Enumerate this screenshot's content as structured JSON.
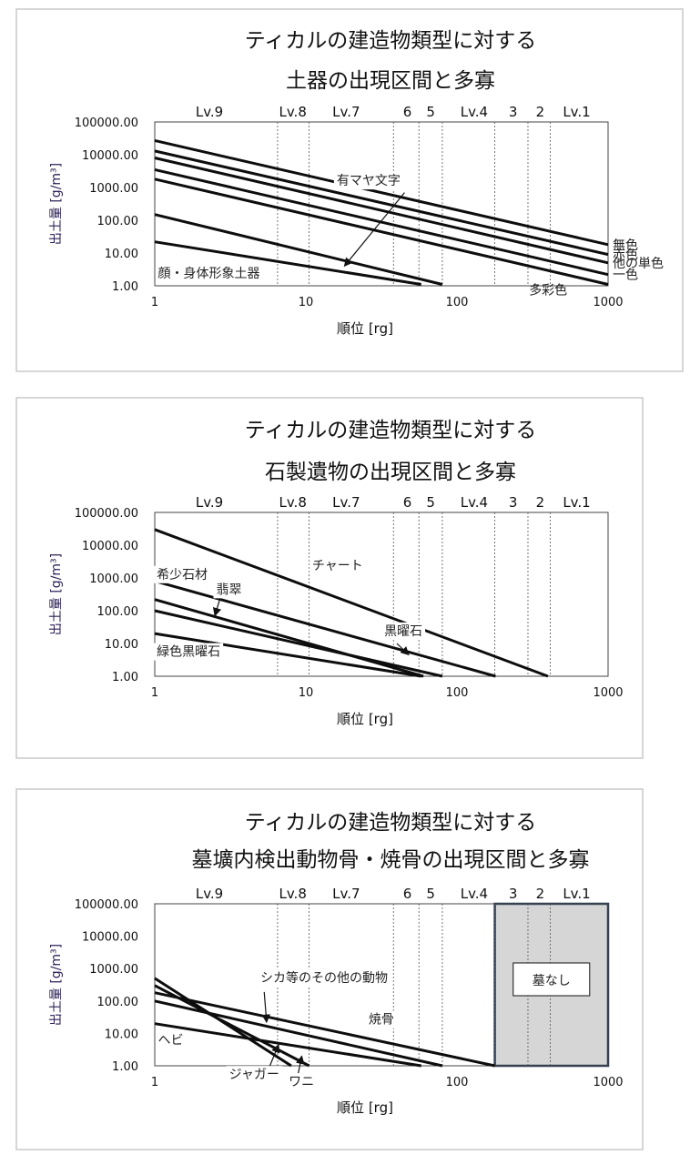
{
  "chart_data": [
    {
      "type": "line",
      "title_lines": [
        "ティカルの建造物類型に対する",
        "土器の出現区間と多寡"
      ],
      "xlabel": "順位 [rg]",
      "ylabel": "出土量 [g/m³]",
      "xscale": "log",
      "yscale": "log",
      "xlim": [
        1,
        1000
      ],
      "ylim": [
        1,
        100000
      ],
      "x_ticks": [
        "1",
        "10",
        "100",
        "1000"
      ],
      "y_ticks": [
        "1.00",
        "10.00",
        "100.00",
        "1000.00",
        "10000.00",
        "100000.00"
      ],
      "levels": [
        {
          "label": "Lv.9",
          "x": 2.3
        },
        {
          "label": "Lv.8",
          "x": 8.2
        },
        {
          "label": "Lv.7",
          "x": 18.5
        },
        {
          "label": "6",
          "x": 47
        },
        {
          "label": "5",
          "x": 67
        },
        {
          "label": "Lv.4",
          "x": 130
        },
        {
          "label": "3",
          "x": 235
        },
        {
          "label": "2",
          "x": 355
        },
        {
          "label": "Lv.1",
          "x": 620
        }
      ],
      "boundaries": [
        6.5,
        10.5,
        38,
        56,
        80,
        178,
        295,
        415
      ],
      "series": [
        {
          "name": "無色",
          "points": [
            [
              1,
              27000
            ],
            [
              1000,
              18
            ]
          ]
        },
        {
          "name": "赤色",
          "points": [
            [
              1,
              13000
            ],
            [
              1000,
              9
            ]
          ]
        },
        {
          "name": "他の単色",
          "points": [
            [
              1,
              8000
            ],
            [
              1000,
              5
            ]
          ]
        },
        {
          "name": "一色",
          "points": [
            [
              1,
              3500
            ],
            [
              1000,
              2.2
            ]
          ]
        },
        {
          "name": "多彩色",
          "points": [
            [
              1,
              1800
            ],
            [
              1000,
              1.1
            ]
          ]
        },
        {
          "name": "",
          "points": [
            [
              1,
              150
            ],
            [
              80,
              1.1
            ]
          ]
        },
        {
          "name": "",
          "points": [
            [
              1,
              22
            ],
            [
              58,
              1.1
            ]
          ]
        }
      ],
      "annotations": [
        {
          "text": "有マヤ文字",
          "x": 16,
          "y": 1200,
          "arrow_from": [
            45,
            700
          ],
          "arrow_to": [
            18,
            4
          ]
        },
        {
          "text": "顔・身体形象土器",
          "x": 1.05,
          "y": 1.8
        }
      ],
      "right_labels": [
        {
          "text": "無色",
          "y": 18
        },
        {
          "text": "赤色",
          "y": 9
        },
        {
          "text": "他の単色",
          "y": 5
        },
        {
          "text": "一色",
          "y": 2.2
        }
      ],
      "extra_labels": [
        {
          "text": "多彩色",
          "x": 300,
          "y": 0.75
        }
      ]
    },
    {
      "type": "line",
      "title_lines": [
        "ティカルの建造物類型に対する",
        "石製遺物の出現区間と多寡"
      ],
      "xlabel": "順位 [rg]",
      "ylabel": "出土量 [g/m³]",
      "xscale": "log",
      "yscale": "log",
      "xlim": [
        1,
        1000
      ],
      "ylim": [
        1,
        100000
      ],
      "x_ticks": [
        "1",
        "10",
        "100",
        "1000"
      ],
      "y_ticks": [
        "1.00",
        "10.00",
        "100.00",
        "1000.00",
        "10000.00",
        "100000.00"
      ],
      "levels": [
        {
          "label": "Lv.9",
          "x": 2.3
        },
        {
          "label": "Lv.8",
          "x": 8.2
        },
        {
          "label": "Lv.7",
          "x": 18.5
        },
        {
          "label": "6",
          "x": 47
        },
        {
          "label": "5",
          "x": 67
        },
        {
          "label": "Lv.4",
          "x": 130
        },
        {
          "label": "3",
          "x": 235
        },
        {
          "label": "2",
          "x": 355
        },
        {
          "label": "Lv.1",
          "x": 620
        }
      ],
      "boundaries": [
        6.5,
        10.5,
        38,
        56,
        80,
        178,
        295,
        415
      ],
      "series": [
        {
          "name": "チャート",
          "points": [
            [
              1,
              30000
            ],
            [
              400,
              1
            ]
          ]
        },
        {
          "name": "希少石材",
          "points": [
            [
              1,
              800
            ],
            [
              180,
              1
            ]
          ]
        },
        {
          "name": "翡翠",
          "points": [
            [
              1,
              220
            ],
            [
              60,
              1
            ]
          ]
        },
        {
          "name": "黒曜石",
          "points": [
            [
              1,
              100
            ],
            [
              80,
              1
            ]
          ]
        },
        {
          "name": "緑色黒曜石",
          "points": [
            [
              1,
              20
            ],
            [
              58,
              1
            ]
          ]
        }
      ],
      "annotations": [
        {
          "text": "チャート",
          "x": 11,
          "y": 1800
        },
        {
          "text": "希少石材",
          "x": 1.03,
          "y": 950
        },
        {
          "text": "翡翠",
          "x": 2.55,
          "y": 330,
          "arrow_from": [
            2.7,
            230
          ],
          "arrow_to": [
            2.5,
            70
          ]
        },
        {
          "text": "黒曜石",
          "x": 33,
          "y": 18,
          "arrow_from": [
            40,
            10
          ],
          "arrow_to": [
            48,
            4.5
          ]
        },
        {
          "text": "緑色黒曜石",
          "x": 1.03,
          "y": 4.2
        }
      ]
    },
    {
      "type": "line",
      "title_lines": [
        "ティカルの建造物類型に対する",
        "墓壙内検出動物骨・焼骨の出現区間と多寡"
      ],
      "xlabel": "順位 [rg]",
      "ylabel": "出土量 [g/m³]",
      "xscale": "log",
      "yscale": "log",
      "xlim": [
        1,
        1000
      ],
      "ylim": [
        1,
        100000
      ],
      "x_ticks": [
        "1",
        "10",
        "100",
        "1000"
      ],
      "y_ticks": [
        "1.00",
        "10.00",
        "100.00",
        "1000.00",
        "10000.00",
        "100000.00"
      ],
      "levels": [
        {
          "label": "Lv.9",
          "x": 2.3
        },
        {
          "label": "Lv.8",
          "x": 8.2
        },
        {
          "label": "Lv.7",
          "x": 18.5
        },
        {
          "label": "6",
          "x": 47
        },
        {
          "label": "5",
          "x": 67
        },
        {
          "label": "Lv.4",
          "x": 130
        },
        {
          "label": "3",
          "x": 235
        },
        {
          "label": "2",
          "x": 355
        },
        {
          "label": "Lv.1",
          "x": 620
        }
      ],
      "boundaries": [
        6.5,
        10.5,
        38,
        56,
        80,
        178,
        295,
        415
      ],
      "no_tomb_region": {
        "text": "墓なし",
        "x_from": 178,
        "x_to": 1000
      },
      "series": [
        {
          "name": "ジャガー",
          "points": [
            [
              1,
              500
            ],
            [
              8,
              1
            ]
          ]
        },
        {
          "name": "ワニ",
          "points": [
            [
              1,
              300
            ],
            [
              10.5,
              1
            ]
          ]
        },
        {
          "name": "シカ等のその他の動物",
          "points": [
            [
              1,
              100
            ],
            [
              80,
              1
            ]
          ]
        },
        {
          "name": "焼骨",
          "points": [
            [
              1,
              180
            ],
            [
              178,
              1
            ]
          ]
        },
        {
          "name": "ヘビ",
          "points": [
            [
              1,
              20
            ],
            [
              58,
              1
            ]
          ]
        }
      ],
      "annotations": [
        {
          "text": "シカ等のその他の動物",
          "x": 5,
          "y": 380,
          "arrow_from": [
            5.3,
            190
          ],
          "arrow_to": [
            5.5,
            22
          ]
        },
        {
          "text": "焼骨",
          "x": 26,
          "y": 20
        },
        {
          "text": "ヘビ",
          "x": 1.05,
          "y": 4.5
        },
        {
          "text": "ジャガー",
          "x": 3.1,
          "y": 0.4,
          "arrow_from": [
            5.6,
            0.7
          ],
          "arrow_to": [
            6.6,
            4.5
          ]
        },
        {
          "text": "ワニ",
          "x": 7.7,
          "y": 0.24,
          "arrow_from": [
            8.8,
            0.45
          ],
          "arrow_to": [
            9.4,
            2
          ]
        }
      ]
    }
  ]
}
